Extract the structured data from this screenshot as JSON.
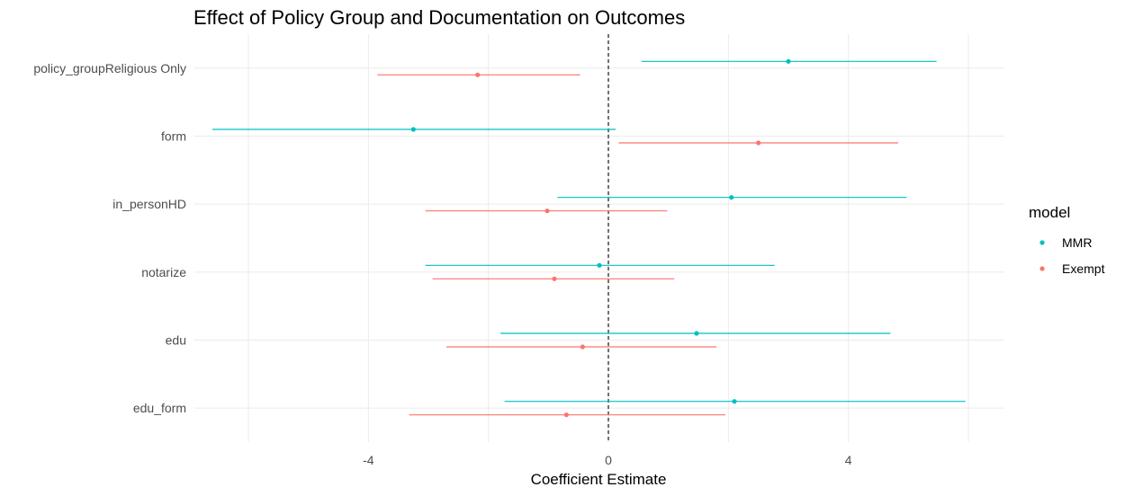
{
  "chart_data": {
    "type": "errorbar-dot",
    "title": "Effect of Policy Group and Documentation on Outcomes",
    "xlabel": "Coefficient Estimate",
    "ylabel": "",
    "xlim": [
      -6.9,
      6.6
    ],
    "x_ticks": [
      -4,
      0,
      4
    ],
    "x_tick_labels": [
      "-4",
      "0",
      "4"
    ],
    "reference_line": 0,
    "grid": true,
    "legend": {
      "title": "model",
      "placement": "right"
    },
    "categories": [
      "policy_groupReligious Only",
      "form",
      "in_personHD",
      "notarize",
      "edu",
      "edu_form"
    ],
    "series": [
      {
        "name": "MMR",
        "color": "#00BFC4",
        "estimate": [
          3.0,
          -3.25,
          2.05,
          -0.15,
          1.47,
          2.1
        ],
        "lower": [
          0.55,
          -6.6,
          -0.85,
          -3.05,
          -1.8,
          -1.73
        ],
        "upper": [
          5.47,
          0.12,
          4.97,
          2.77,
          4.7,
          5.95
        ]
      },
      {
        "name": "Exempt",
        "color": "#F8766D",
        "estimate": [
          -2.18,
          2.5,
          -1.02,
          -0.9,
          -0.43,
          -0.7
        ],
        "lower": [
          -3.85,
          0.17,
          -3.05,
          -2.93,
          -2.7,
          -3.32
        ],
        "upper": [
          -0.47,
          4.83,
          0.98,
          1.1,
          1.8,
          1.95
        ]
      }
    ]
  }
}
